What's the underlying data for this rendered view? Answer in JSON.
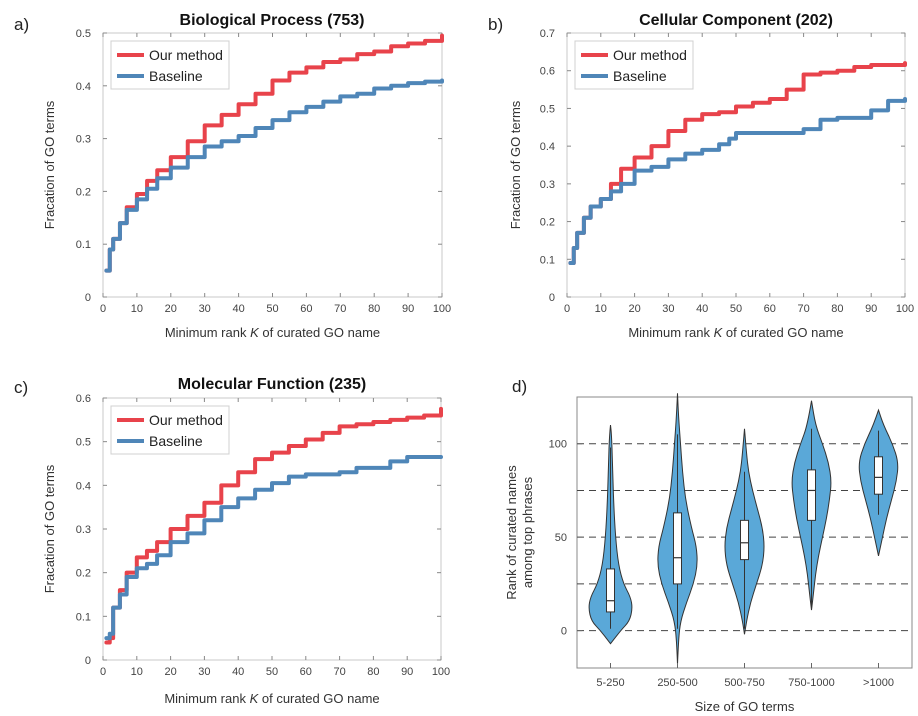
{
  "chart_data": [
    {
      "type": "line",
      "panel_label": "a)",
      "title": "Biological Process (753)",
      "xlabel_pre": "Minimum rank ",
      "xlabel_k": "K",
      "xlabel_post": " of curated GO name",
      "ylabel": "Fracation of GO terms",
      "xlim": [
        0,
        100
      ],
      "ylim": [
        0,
        0.5
      ],
      "xticks": [
        0,
        10,
        20,
        30,
        40,
        50,
        60,
        70,
        80,
        90,
        100
      ],
      "yticks": [
        0,
        0.1,
        0.2,
        0.3,
        0.4,
        0.5
      ],
      "legend": "top-left",
      "series": [
        {
          "name": "Our method",
          "color": "#e8434b",
          "x": [
            1,
            2,
            3,
            5,
            7,
            10,
            13,
            16,
            20,
            25,
            30,
            35,
            40,
            45,
            50,
            55,
            60,
            65,
            70,
            75,
            80,
            85,
            90,
            95,
            100
          ],
          "y": [
            0.05,
            0.09,
            0.11,
            0.14,
            0.17,
            0.195,
            0.22,
            0.24,
            0.265,
            0.295,
            0.325,
            0.345,
            0.365,
            0.385,
            0.41,
            0.425,
            0.435,
            0.445,
            0.45,
            0.46,
            0.465,
            0.475,
            0.48,
            0.485,
            0.495
          ]
        },
        {
          "name": "Baseline",
          "color": "#4f86b8",
          "x": [
            1,
            2,
            3,
            5,
            7,
            10,
            13,
            16,
            20,
            25,
            30,
            35,
            40,
            45,
            50,
            55,
            60,
            65,
            70,
            75,
            80,
            85,
            90,
            95,
            100
          ],
          "y": [
            0.05,
            0.09,
            0.11,
            0.14,
            0.165,
            0.185,
            0.205,
            0.225,
            0.245,
            0.265,
            0.285,
            0.295,
            0.305,
            0.32,
            0.335,
            0.35,
            0.36,
            0.37,
            0.38,
            0.385,
            0.395,
            0.4,
            0.405,
            0.408,
            0.41
          ]
        }
      ]
    },
    {
      "type": "line",
      "panel_label": "b)",
      "title": "Cellular Component (202)",
      "xlabel_pre": "Minimum rank ",
      "xlabel_k": "K",
      "xlabel_post": " of curated GO name",
      "ylabel": "Fracation of GO terms",
      "xlim": [
        0,
        100
      ],
      "ylim": [
        0,
        0.7
      ],
      "xticks": [
        0,
        10,
        20,
        30,
        40,
        50,
        60,
        70,
        80,
        90,
        100
      ],
      "yticks": [
        0,
        0.1,
        0.2,
        0.3,
        0.4,
        0.5,
        0.6,
        0.7
      ],
      "legend": "top-left",
      "series": [
        {
          "name": "Our method",
          "color": "#e8434b",
          "x": [
            1,
            2,
            3,
            5,
            7,
            10,
            13,
            16,
            20,
            25,
            30,
            35,
            40,
            45,
            50,
            55,
            60,
            65,
            70,
            75,
            80,
            85,
            90,
            95,
            100
          ],
          "y": [
            0.09,
            0.13,
            0.17,
            0.21,
            0.24,
            0.26,
            0.3,
            0.34,
            0.37,
            0.4,
            0.44,
            0.47,
            0.485,
            0.49,
            0.505,
            0.515,
            0.525,
            0.55,
            0.59,
            0.595,
            0.6,
            0.61,
            0.615,
            0.615,
            0.62
          ]
        },
        {
          "name": "Baseline",
          "color": "#4f86b8",
          "x": [
            1,
            2,
            3,
            5,
            7,
            10,
            13,
            16,
            20,
            25,
            30,
            35,
            40,
            45,
            48,
            50,
            55,
            60,
            65,
            70,
            75,
            80,
            85,
            90,
            95,
            100
          ],
          "y": [
            0.09,
            0.13,
            0.17,
            0.21,
            0.24,
            0.26,
            0.28,
            0.3,
            0.335,
            0.345,
            0.365,
            0.38,
            0.39,
            0.405,
            0.42,
            0.435,
            0.435,
            0.435,
            0.435,
            0.445,
            0.47,
            0.475,
            0.475,
            0.495,
            0.52,
            0.525
          ]
        }
      ]
    },
    {
      "type": "line",
      "panel_label": "c)",
      "title": "Molecular Function (235)",
      "xlabel_pre": "Minimum rank ",
      "xlabel_k": "K",
      "xlabel_post": " of curated GO name",
      "ylabel": "Fracation of GO terms",
      "xlim": [
        0,
        100
      ],
      "ylim": [
        0,
        0.6
      ],
      "xticks": [
        0,
        10,
        20,
        30,
        40,
        50,
        60,
        70,
        80,
        90,
        100
      ],
      "yticks": [
        0,
        0.1,
        0.2,
        0.3,
        0.4,
        0.5,
        0.6
      ],
      "legend": "top-left",
      "series": [
        {
          "name": "Our method",
          "color": "#e8434b",
          "x": [
            1,
            2,
            3,
            5,
            7,
            10,
            13,
            16,
            20,
            25,
            30,
            35,
            40,
            45,
            50,
            55,
            60,
            65,
            70,
            75,
            80,
            85,
            90,
            95,
            100
          ],
          "y": [
            0.04,
            0.05,
            0.12,
            0.16,
            0.2,
            0.235,
            0.25,
            0.27,
            0.3,
            0.33,
            0.36,
            0.4,
            0.43,
            0.46,
            0.475,
            0.49,
            0.505,
            0.52,
            0.535,
            0.54,
            0.545,
            0.55,
            0.555,
            0.56,
            0.575
          ]
        },
        {
          "name": "Baseline",
          "color": "#4f86b8",
          "x": [
            1,
            2,
            3,
            5,
            7,
            10,
            13,
            16,
            20,
            25,
            30,
            35,
            40,
            45,
            50,
            55,
            60,
            65,
            70,
            75,
            80,
            85,
            90,
            95,
            100
          ],
          "y": [
            0.05,
            0.06,
            0.12,
            0.15,
            0.19,
            0.21,
            0.22,
            0.24,
            0.27,
            0.29,
            0.32,
            0.35,
            0.37,
            0.39,
            0.405,
            0.42,
            0.425,
            0.425,
            0.43,
            0.44,
            0.44,
            0.455,
            0.465,
            0.465,
            0.465
          ]
        }
      ]
    },
    {
      "type": "violin",
      "panel_label": "d)",
      "title": "",
      "xlabel": "Size of GO terms",
      "ylabel_line1": "Rank of curated names",
      "ylabel_line2": "among top phrases",
      "ylim": [
        -20,
        125
      ],
      "yticks": [
        0,
        50,
        100
      ],
      "gridlines_dashed": [
        0,
        25,
        50,
        75,
        100
      ],
      "color": "#5aa8d8",
      "categories": [
        "5-250",
        "250-500",
        "500-750",
        "750-1000",
        ">1000"
      ],
      "violins": [
        {
          "min": 1,
          "q1": 10,
          "median": 16,
          "q3": 33,
          "max": 98,
          "ys": [
            -7,
            0,
            5,
            12,
            18,
            25,
            35,
            50,
            70,
            90,
            105,
            110
          ],
          "w": [
            0,
            10,
            19,
            22,
            20,
            13,
            8,
            5,
            3,
            2,
            1,
            0
          ]
        },
        {
          "min": 1,
          "q1": 25,
          "median": 39,
          "q3": 63,
          "max": 105,
          "ys": [
            -18,
            -5,
            5,
            15,
            25,
            35,
            45,
            55,
            70,
            85,
            100,
            115,
            127
          ],
          "w": [
            0,
            1,
            3,
            9,
            16,
            20,
            19,
            14,
            8,
            5,
            3,
            1,
            0
          ]
        },
        {
          "min": 1,
          "q1": 38,
          "median": 47,
          "q3": 59,
          "max": 85,
          "ys": [
            -2,
            5,
            15,
            25,
            35,
            45,
            55,
            65,
            75,
            85,
            95,
            108
          ],
          "w": [
            0,
            2,
            6,
            12,
            18,
            20,
            18,
            13,
            8,
            4,
            2,
            0
          ]
        },
        {
          "min": 12,
          "q1": 59,
          "median": 75,
          "q3": 86,
          "max": 108,
          "ys": [
            11,
            20,
            30,
            40,
            50,
            60,
            70,
            80,
            90,
            100,
            110,
            123
          ],
          "w": [
            0,
            2,
            4,
            7,
            11,
            15,
            18,
            20,
            17,
            11,
            4,
            0
          ]
        },
        {
          "min": 62,
          "q1": 73,
          "median": 82,
          "q3": 93,
          "max": 107,
          "ys": [
            40,
            50,
            60,
            70,
            80,
            90,
            100,
            110,
            118
          ],
          "w": [
            0,
            4,
            8,
            13,
            18,
            20,
            14,
            5,
            0
          ]
        }
      ]
    }
  ]
}
